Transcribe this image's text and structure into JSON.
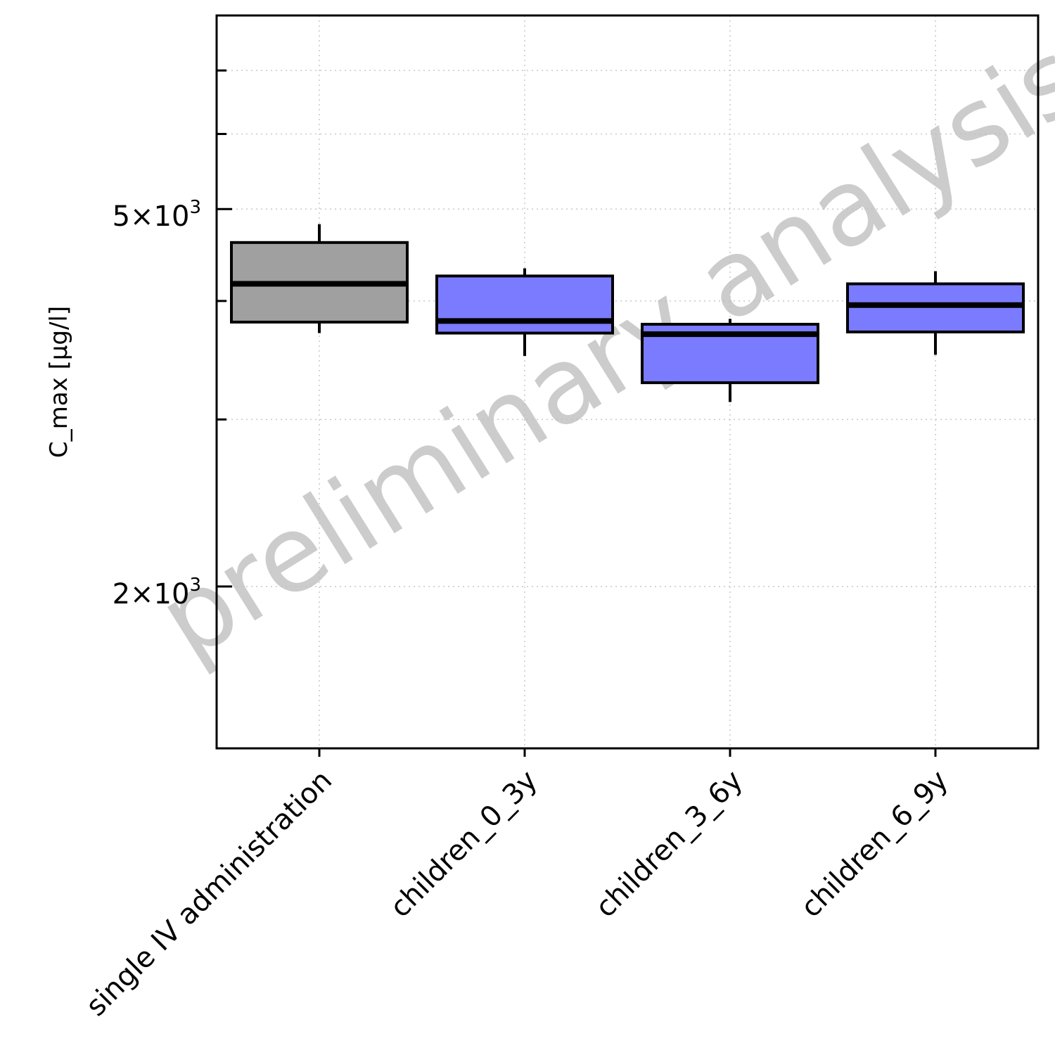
{
  "chart_data": {
    "type": "box",
    "title": "",
    "xlabel": "",
    "ylabel": "C_max [µg/l]",
    "y_scale": "log",
    "ylim": [
      1350,
      8000
    ],
    "grid": true,
    "legend": "none",
    "watermark": "preliminary analysis",
    "y_ticks": [
      {
        "value": 2000,
        "coef": "2",
        "base": "10",
        "exp": "3"
      },
      {
        "value": 5000,
        "coef": "5",
        "base": "10",
        "exp": "3"
      }
    ],
    "y_minor_ticks": [
      3000,
      4000,
      6000,
      7000,
      8000
    ],
    "categories": [
      "single IV administration",
      "children_0_3y",
      "children_3_6y",
      "children_6_9y"
    ],
    "boxes": [
      {
        "category": "single IV administration",
        "whisker_low": 3700,
        "q1": 3800,
        "median": 4170,
        "q3": 4610,
        "whisker_high": 4820,
        "color": "#a0a0a0"
      },
      {
        "category": "children_0_3y",
        "whisker_low": 3500,
        "q1": 3700,
        "median": 3810,
        "q3": 4250,
        "whisker_high": 4330,
        "color": "#7b7bff"
      },
      {
        "category": "children_3_6y",
        "whisker_low": 3130,
        "q1": 3280,
        "median": 3690,
        "q3": 3780,
        "whisker_high": 3830,
        "color": "#7b7bff"
      },
      {
        "category": "children_6_9y",
        "whisker_low": 3510,
        "q1": 3710,
        "median": 3960,
        "q3": 4170,
        "whisker_high": 4300,
        "color": "#7b7bff"
      }
    ]
  }
}
